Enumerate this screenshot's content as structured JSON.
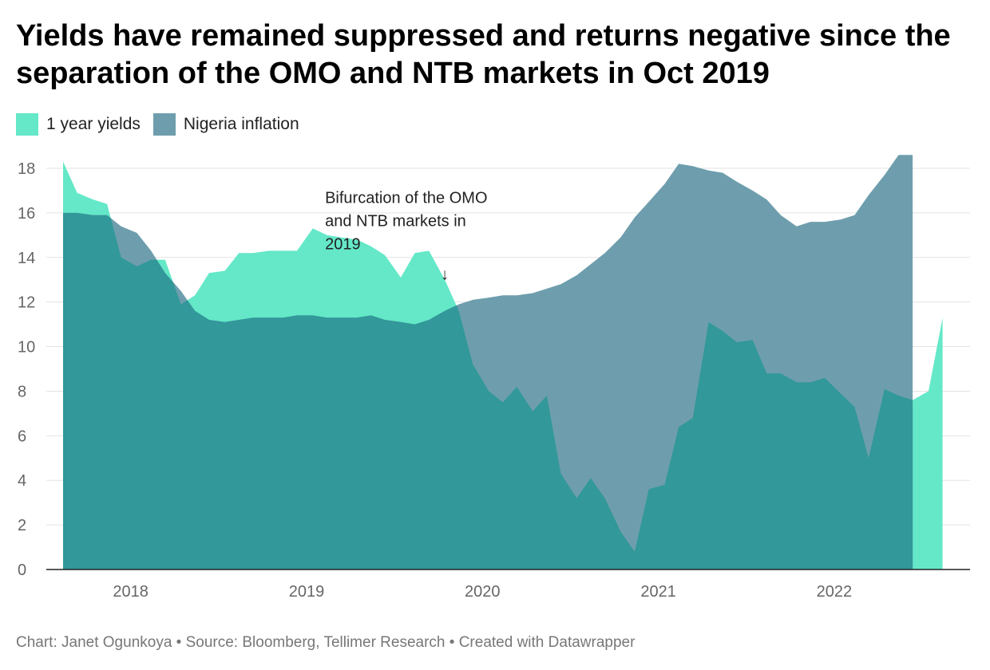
{
  "title": "Yields have remained suppressed and returns negative since the separation of the OMO and NTB markets in Oct 2019",
  "footer": "Chart: Janet Ogunkoya • Source: Bloomberg, Tellimer Research • Created with Datawrapper",
  "colors": {
    "yields": "#64e8c8",
    "inflation": "#6e9ead",
    "overlap": "#32989a",
    "grid": "#e3e3e3",
    "axis": "#222222"
  },
  "chart_data": {
    "type": "area",
    "xlabel": "",
    "ylabel": "",
    "ylim": [
      0,
      18
    ],
    "xlim": [
      2017.68,
      2022.75
    ],
    "yticks": [
      0,
      2,
      4,
      6,
      8,
      10,
      12,
      14,
      16,
      18
    ],
    "xticks": [
      2018,
      2019,
      2020,
      2021,
      2022
    ],
    "grid": true,
    "legend_position": "top-left",
    "series": [
      {
        "name": "1 year yields",
        "x": [
          2017.68,
          2017.76,
          2017.85,
          2017.93,
          2018.01,
          2018.1,
          2018.18,
          2018.26,
          2018.35,
          2018.43,
          2018.51,
          2018.6,
          2018.68,
          2018.76,
          2018.85,
          2018.93,
          2019.01,
          2019.1,
          2019.18,
          2019.26,
          2019.35,
          2019.43,
          2019.51,
          2019.6,
          2019.68,
          2019.76,
          2019.85,
          2019.93,
          2020.01,
          2020.1,
          2020.18,
          2020.26,
          2020.35,
          2020.43,
          2020.51,
          2020.6,
          2020.68,
          2020.76,
          2020.85,
          2020.93,
          2021.01,
          2021.1,
          2021.18,
          2021.26,
          2021.35,
          2021.43,
          2021.51,
          2021.6,
          2021.68,
          2021.76,
          2021.85,
          2021.93,
          2022.01,
          2022.1,
          2022.18,
          2022.26,
          2022.35,
          2022.43,
          2022.51,
          2022.6,
          2022.68
        ],
        "values": [
          18.3,
          16.9,
          16.6,
          16.4,
          14.0,
          13.6,
          13.9,
          13.9,
          11.9,
          12.3,
          13.3,
          13.4,
          14.2,
          14.2,
          14.3,
          14.3,
          14.3,
          15.3,
          15.0,
          14.9,
          14.8,
          14.5,
          14.1,
          13.1,
          14.2,
          14.3,
          13.0,
          11.6,
          9.2,
          8.0,
          7.5,
          8.2,
          7.1,
          7.8,
          4.3,
          3.2,
          4.1,
          3.2,
          1.7,
          0.8,
          3.6,
          3.8,
          6.4,
          6.8,
          11.1,
          10.7,
          10.2,
          10.3,
          8.8,
          8.8,
          8.4,
          8.4,
          8.6,
          7.9,
          7.3,
          5.0,
          8.1,
          7.8,
          7.6,
          8.0,
          11.3
        ]
      },
      {
        "name": "Nigeria inflation",
        "x": [
          2017.68,
          2017.76,
          2017.85,
          2017.93,
          2018.01,
          2018.1,
          2018.18,
          2018.26,
          2018.35,
          2018.43,
          2018.51,
          2018.6,
          2018.68,
          2018.76,
          2018.85,
          2018.93,
          2019.01,
          2019.1,
          2019.18,
          2019.26,
          2019.35,
          2019.43,
          2019.51,
          2019.6,
          2019.68,
          2019.76,
          2019.85,
          2019.93,
          2020.01,
          2020.1,
          2020.18,
          2020.26,
          2020.35,
          2020.43,
          2020.51,
          2020.6,
          2020.68,
          2020.76,
          2020.85,
          2020.93,
          2021.01,
          2021.1,
          2021.18,
          2021.26,
          2021.35,
          2021.43,
          2021.51,
          2021.6,
          2021.68,
          2021.76,
          2021.85,
          2021.93,
          2022.01,
          2022.1,
          2022.18,
          2022.26,
          2022.35,
          2022.43,
          2022.51
        ],
        "values": [
          16.0,
          16.0,
          15.9,
          15.9,
          15.4,
          15.1,
          14.3,
          13.3,
          12.5,
          11.6,
          11.2,
          11.1,
          11.2,
          11.3,
          11.3,
          11.3,
          11.4,
          11.4,
          11.3,
          11.3,
          11.3,
          11.4,
          11.2,
          11.1,
          11.0,
          11.2,
          11.6,
          11.9,
          12.1,
          12.2,
          12.3,
          12.3,
          12.4,
          12.6,
          12.8,
          13.2,
          13.7,
          14.2,
          14.9,
          15.8,
          16.5,
          17.3,
          18.2,
          18.1,
          17.9,
          17.8,
          17.4,
          17.0,
          16.6,
          15.9,
          15.4,
          15.6,
          15.6,
          15.7,
          15.9,
          16.8,
          17.7,
          18.6,
          18.6
        ]
      }
    ],
    "annotations": [
      {
        "text_lines": [
          "Bifurcation of the OMO",
          "and NTB markets in",
          "2019"
        ],
        "arrow": "↓",
        "x": 2019.85,
        "y": 13.3
      }
    ]
  }
}
